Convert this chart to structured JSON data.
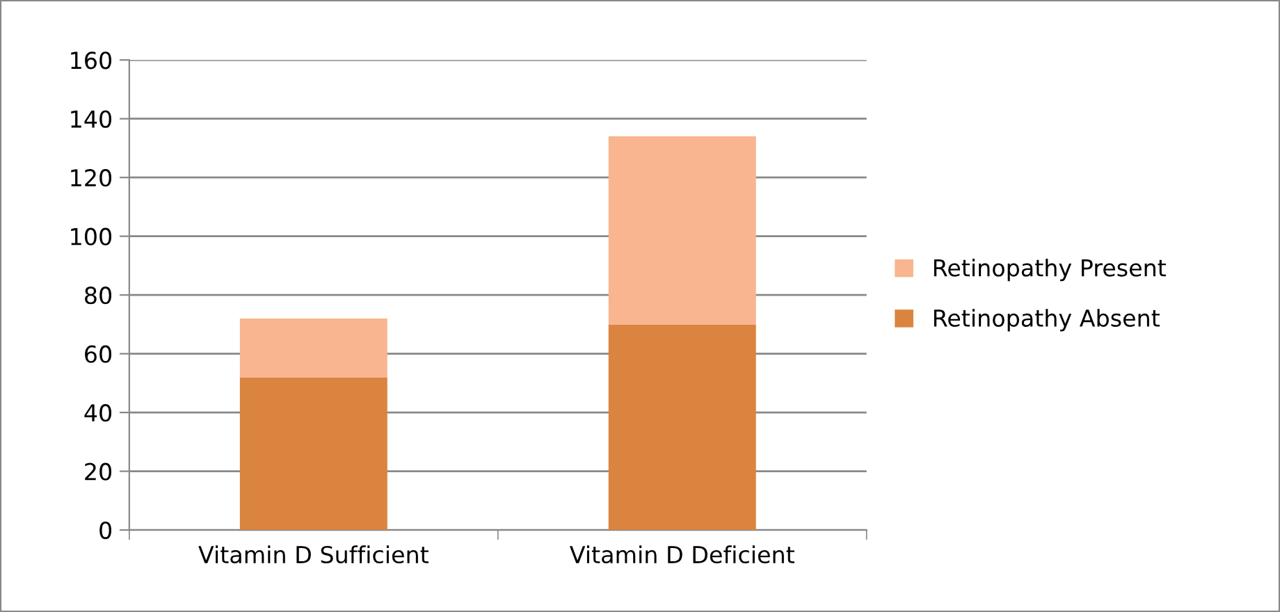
{
  "chart_data": {
    "type": "bar",
    "stacked": true,
    "categories": [
      "Vitamin D Sufficient",
      "Vitamin D Deficient"
    ],
    "series": [
      {
        "name": "Retinopathy Absent",
        "color": "#da843f",
        "values": [
          52,
          70
        ]
      },
      {
        "name": "Retinopathy Present",
        "color": "#f8b58f",
        "values": [
          20,
          64
        ]
      }
    ],
    "ylim": [
      0,
      160
    ],
    "yticks": [
      0,
      20,
      40,
      60,
      80,
      100,
      120,
      140,
      160
    ],
    "grid": "y",
    "legend": "right"
  }
}
